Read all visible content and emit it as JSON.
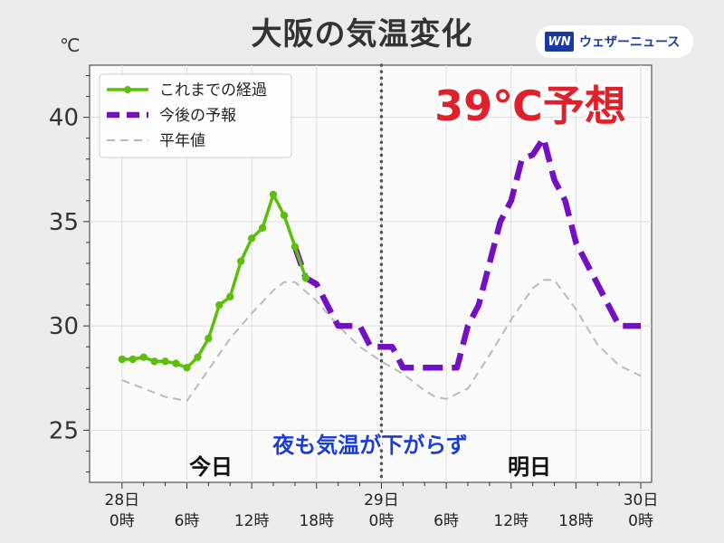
{
  "header": {
    "title": "大阪の気温変化",
    "unit": "℃",
    "logo_mark": "WN",
    "logo_text": "ウェザーニュース"
  },
  "chart_data": {
    "type": "line",
    "title": "大阪の気温変化",
    "ylabel": "℃",
    "xlim": [
      -3,
      49
    ],
    "ylim": [
      22.5,
      42.5
    ],
    "yticks": [
      25,
      30,
      35,
      40
    ],
    "xticks": [
      {
        "x": 0,
        "labels": [
          "28日",
          "0時"
        ]
      },
      {
        "x": 6,
        "labels": [
          "6時"
        ]
      },
      {
        "x": 12,
        "labels": [
          "12時"
        ]
      },
      {
        "x": 18,
        "labels": [
          "18時"
        ]
      },
      {
        "x": 24,
        "labels": [
          "29日",
          "0時"
        ]
      },
      {
        "x": 30,
        "labels": [
          "6時"
        ]
      },
      {
        "x": 36,
        "labels": [
          "12時"
        ]
      },
      {
        "x": 42,
        "labels": [
          "18時"
        ]
      },
      {
        "x": 48,
        "labels": [
          "30日",
          "0時"
        ]
      }
    ],
    "grid": true,
    "legend_position": "top-left",
    "divider_x": 24,
    "series": [
      {
        "name": "これまでの経過",
        "color": "#5cbf0a",
        "style": "solid-markers",
        "x": [
          0,
          1,
          2,
          3,
          4,
          5,
          6,
          7,
          8,
          9,
          10,
          11,
          12,
          13,
          14,
          15,
          16,
          17
        ],
        "y": [
          28.4,
          28.4,
          28.5,
          28.3,
          28.3,
          28.2,
          28.0,
          28.5,
          29.4,
          31.0,
          31.4,
          33.1,
          34.2,
          34.7,
          36.3,
          35.3,
          33.8,
          32.3
        ]
      },
      {
        "name": "今後の予報",
        "color": "#7410c4",
        "style": "dashed-thick",
        "x": [
          16,
          17,
          18,
          19,
          20,
          21,
          22,
          23,
          24,
          25,
          26,
          27,
          28,
          29,
          30,
          31,
          32,
          33,
          34,
          35,
          36,
          37,
          38,
          39,
          40,
          41,
          42,
          43,
          44,
          45,
          46,
          47,
          48
        ],
        "y": [
          33.8,
          32.3,
          32.0,
          31.0,
          30.0,
          30.0,
          30.0,
          29.0,
          29.0,
          29.0,
          28.0,
          28.0,
          28.0,
          28.0,
          28.0,
          28.0,
          30.0,
          31.0,
          33.0,
          35.0,
          36.0,
          38.0,
          38.2,
          39.0,
          37.0,
          36.0,
          34.0,
          33.0,
          32.0,
          31.0,
          30.0,
          30.0,
          30.0
        ]
      },
      {
        "name": "平年値",
        "color": "#bbbbbb",
        "style": "dashed-thin",
        "x": [
          0,
          2,
          4,
          6,
          8,
          10,
          12,
          14,
          15,
          16,
          18,
          20,
          22,
          24,
          26,
          28,
          29,
          30,
          32,
          34,
          36,
          38,
          39,
          40,
          42,
          44,
          46,
          48
        ],
        "y": [
          27.4,
          27.0,
          26.6,
          26.4,
          27.9,
          29.4,
          30.6,
          31.7,
          32.1,
          32.1,
          31.2,
          30.0,
          29.0,
          28.3,
          27.7,
          26.9,
          26.6,
          26.5,
          27.0,
          28.6,
          30.3,
          31.8,
          32.2,
          32.2,
          30.8,
          29.1,
          28.1,
          27.6
        ]
      }
    ],
    "annotations": {
      "forecast_max": "39℃予想",
      "night_note": "夜も気温が下がらず",
      "today": "今日",
      "tomorrow": "明日"
    }
  }
}
